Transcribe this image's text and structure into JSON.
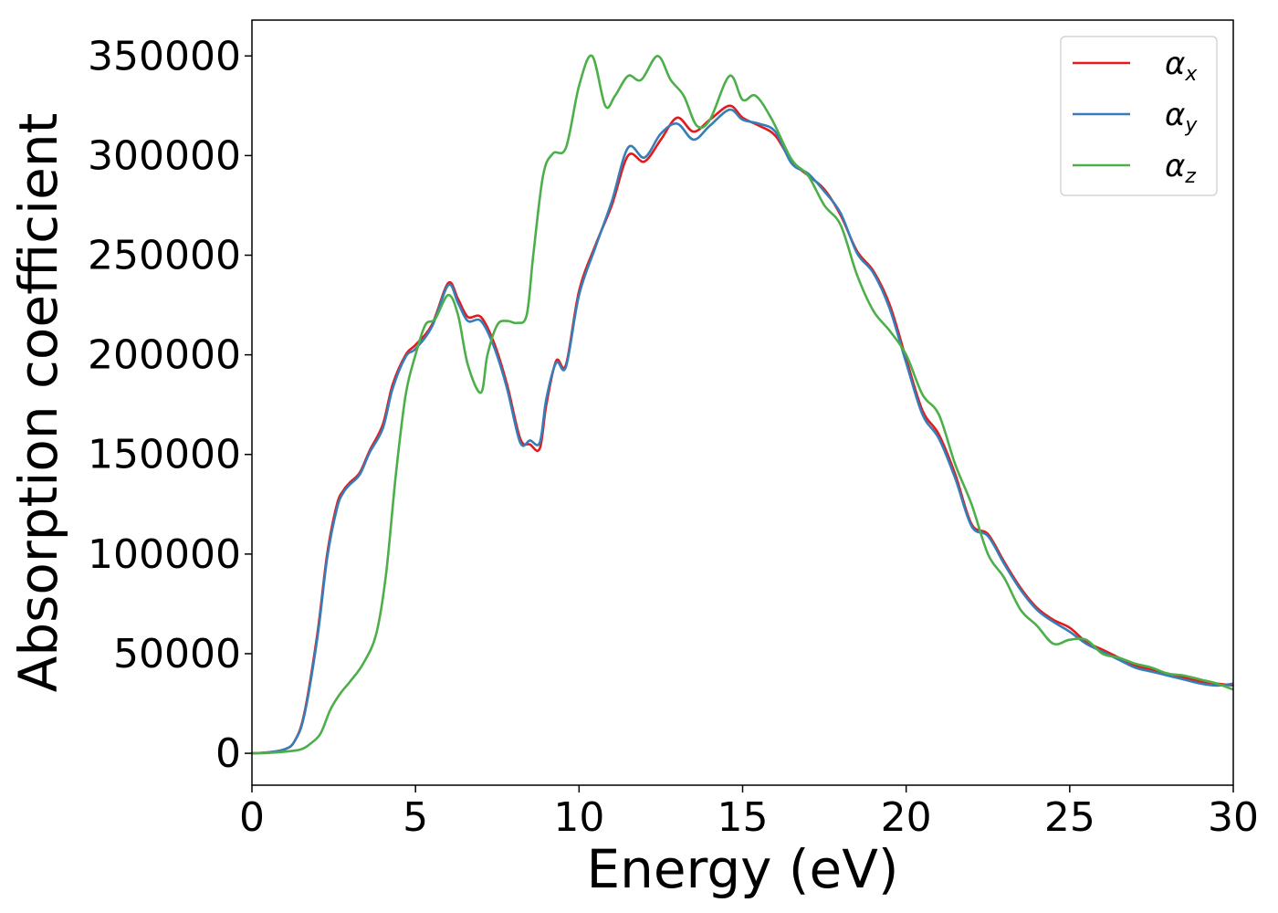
{
  "chart_data": {
    "type": "line",
    "xlabel": "Energy (eV)",
    "ylabel": "Absorption coefficient",
    "xlim": [
      0,
      30
    ],
    "ylim": [
      -16000,
      368000
    ],
    "xticks": [
      0,
      5,
      10,
      15,
      20,
      25,
      30
    ],
    "xtick_labels": [
      "0",
      "5",
      "10",
      "15",
      "20",
      "25",
      "30"
    ],
    "yticks": [
      0,
      50000,
      100000,
      150000,
      200000,
      250000,
      300000,
      350000
    ],
    "ytick_labels": [
      "0",
      "50000",
      "100000",
      "150000",
      "200000",
      "250000",
      "300000",
      "350000"
    ],
    "grid": false,
    "legend_position": "top-right",
    "series": [
      {
        "name": "αx",
        "symbol": "α",
        "subscript": "x",
        "color": "#e41a1c",
        "x": [
          0,
          0.5,
          1.0,
          1.3,
          1.6,
          2.0,
          2.3,
          2.6,
          2.8,
          3.0,
          3.3,
          3.6,
          4.0,
          4.3,
          4.7,
          5.0,
          5.5,
          6.0,
          6.3,
          6.6,
          7.0,
          7.4,
          7.8,
          8.2,
          8.5,
          8.8,
          9.0,
          9.3,
          9.6,
          10.0,
          10.5,
          11.0,
          11.5,
          12.0,
          12.5,
          13.0,
          13.5,
          14.0,
          14.6,
          15.0,
          15.5,
          16.0,
          16.5,
          17.0,
          17.5,
          18.0,
          18.5,
          19.0,
          19.5,
          20.0,
          20.5,
          21.0,
          21.5,
          22.0,
          22.5,
          23.0,
          23.5,
          24.0,
          24.5,
          25.0,
          25.5,
          26.0,
          26.5,
          27.0,
          27.5,
          28.0,
          28.5,
          29.0,
          29.5,
          30.0
        ],
        "y": [
          0,
          500,
          2000,
          6000,
          20000,
          60000,
          100000,
          125000,
          132000,
          136000,
          141000,
          152000,
          165000,
          185000,
          200000,
          205000,
          215000,
          236000,
          228000,
          219000,
          219000,
          206000,
          185000,
          158000,
          155000,
          153000,
          175000,
          197000,
          195000,
          232000,
          255000,
          275000,
          300000,
          297000,
          308000,
          319000,
          312000,
          318000,
          325000,
          319000,
          315000,
          310000,
          297000,
          290000,
          283000,
          270000,
          252000,
          242000,
          225000,
          198000,
          172000,
          160000,
          140000,
          115000,
          110000,
          96000,
          83000,
          73000,
          67000,
          63000,
          56000,
          52000,
          48000,
          44000,
          42000,
          40000,
          38000,
          36000,
          35000,
          34000
        ]
      },
      {
        "name": "αy",
        "symbol": "α",
        "subscript": "y",
        "color": "#377eb8",
        "x": [
          0,
          0.5,
          1.0,
          1.3,
          1.6,
          2.0,
          2.3,
          2.6,
          2.8,
          3.0,
          3.3,
          3.6,
          4.0,
          4.3,
          4.7,
          5.0,
          5.5,
          6.0,
          6.3,
          6.6,
          7.0,
          7.4,
          7.8,
          8.2,
          8.5,
          8.8,
          9.0,
          9.3,
          9.6,
          10.0,
          10.5,
          11.0,
          11.5,
          12.0,
          12.5,
          13.0,
          13.5,
          14.0,
          14.6,
          15.0,
          15.5,
          16.0,
          16.5,
          17.0,
          17.5,
          18.0,
          18.5,
          19.0,
          19.5,
          20.0,
          20.5,
          21.0,
          21.5,
          22.0,
          22.5,
          23.0,
          23.5,
          24.0,
          24.5,
          25.0,
          25.5,
          26.0,
          26.5,
          27.0,
          27.5,
          28.0,
          28.5,
          29.0,
          29.5,
          30.0
        ],
        "y": [
          0,
          500,
          2000,
          6000,
          19000,
          58000,
          98000,
          123000,
          131000,
          135000,
          140000,
          151000,
          163000,
          183000,
          199000,
          203000,
          214000,
          235000,
          226000,
          217000,
          217000,
          204000,
          183000,
          156000,
          157000,
          156000,
          178000,
          196000,
          194000,
          230000,
          254000,
          277000,
          304000,
          299000,
          311000,
          316000,
          308000,
          315000,
          323000,
          318000,
          316000,
          312000,
          296000,
          291000,
          282000,
          271000,
          251000,
          241000,
          223000,
          196000,
          170000,
          158000,
          138000,
          114000,
          109000,
          95000,
          82000,
          72000,
          66000,
          61000,
          55000,
          51000,
          47000,
          43000,
          41000,
          39000,
          37000,
          35000,
          34000,
          35000
        ]
      },
      {
        "name": "αz",
        "symbol": "α",
        "subscript": "z",
        "color": "#4daf4a",
        "x": [
          0,
          0.5,
          1.0,
          1.5,
          1.8,
          2.1,
          2.4,
          2.7,
          3.0,
          3.4,
          3.8,
          4.1,
          4.4,
          4.7,
          5.0,
          5.3,
          5.6,
          6.0,
          6.3,
          6.6,
          7.0,
          7.2,
          7.5,
          7.8,
          8.1,
          8.4,
          8.6,
          8.9,
          9.2,
          9.6,
          10.0,
          10.4,
          10.8,
          11.1,
          11.5,
          11.9,
          12.4,
          12.8,
          13.2,
          13.6,
          14.0,
          14.6,
          15.0,
          15.4,
          15.9,
          16.5,
          17.0,
          17.5,
          18.0,
          18.5,
          19.0,
          19.5,
          20.0,
          20.5,
          21.0,
          21.5,
          22.0,
          22.5,
          23.0,
          23.5,
          24.0,
          24.5,
          25.0,
          25.5,
          26.0,
          26.5,
          27.0,
          27.5,
          28.0,
          28.5,
          29.0,
          29.5,
          30.0
        ],
        "y": [
          0,
          200,
          800,
          2000,
          5000,
          10000,
          22000,
          30000,
          36000,
          45000,
          60000,
          90000,
          140000,
          180000,
          200000,
          215000,
          218000,
          230000,
          220000,
          195000,
          181000,
          200000,
          215000,
          217000,
          216000,
          220000,
          250000,
          290000,
          301000,
          304000,
          335000,
          350000,
          325000,
          330000,
          340000,
          338000,
          350000,
          338000,
          330000,
          315000,
          318000,
          340000,
          328000,
          330000,
          318000,
          298000,
          290000,
          275000,
          265000,
          240000,
          222000,
          212000,
          200000,
          180000,
          170000,
          145000,
          125000,
          100000,
          88000,
          72000,
          64000,
          55000,
          57000,
          57000,
          50000,
          48000,
          45000,
          43000,
          40000,
          39000,
          37000,
          35000,
          32000
        ]
      }
    ]
  }
}
